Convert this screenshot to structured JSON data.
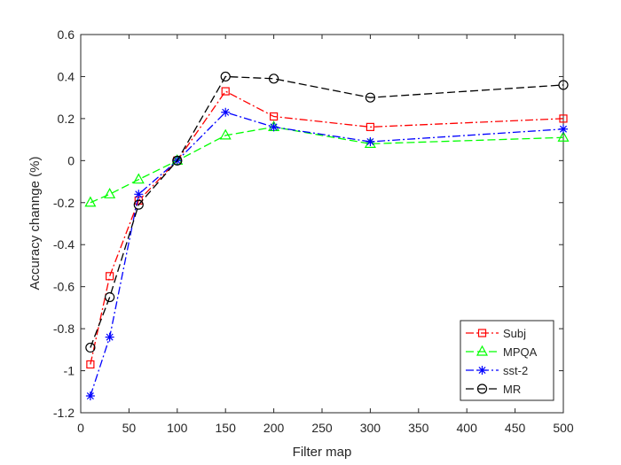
{
  "chart_data": {
    "type": "line",
    "title": "",
    "xlabel": "Filter map",
    "ylabel": "Accuracy channge (%)",
    "xlim": [
      0,
      500
    ],
    "ylim": [
      -1.2,
      0.6
    ],
    "xticks": [
      0,
      50,
      100,
      150,
      200,
      250,
      300,
      350,
      400,
      450,
      500
    ],
    "yticks": [
      -1.2,
      -1,
      -0.8,
      -0.6,
      -0.4,
      -0.2,
      0,
      0.2,
      0.4,
      0.6
    ],
    "xtick_labels": [
      "0",
      "50",
      "100",
      "150",
      "200",
      "250",
      "300",
      "350",
      "400",
      "450",
      "500"
    ],
    "ytick_labels": [
      "-1.2",
      "-1",
      "-0.8",
      "-0.6",
      "-0.4",
      "-0.2",
      "0",
      "0.2",
      "0.4",
      "0.6"
    ],
    "grid": false,
    "legend_position": "bottom-right",
    "x": [
      10,
      30,
      60,
      100,
      150,
      200,
      300,
      500
    ],
    "series": [
      {
        "name": "Subj",
        "color": "#ff0000",
        "dash": "dash-dot",
        "marker": "square",
        "values": [
          -0.97,
          -0.55,
          -0.19,
          0.0,
          0.33,
          0.21,
          0.16,
          0.2
        ]
      },
      {
        "name": "MPQA",
        "color": "#00ff00",
        "dash": "dashed",
        "marker": "triangle",
        "values": [
          -0.2,
          -0.16,
          -0.09,
          0.0,
          0.12,
          0.16,
          0.08,
          0.11
        ]
      },
      {
        "name": "sst-2",
        "color": "#0000ff",
        "dash": "dash-dot",
        "marker": "star",
        "values": [
          -1.12,
          -0.84,
          -0.16,
          0.0,
          0.23,
          0.16,
          0.09,
          0.15
        ]
      },
      {
        "name": "MR",
        "color": "#000000",
        "dash": "dashed",
        "marker": "circle",
        "values": [
          -0.89,
          -0.65,
          -0.21,
          0.0,
          0.4,
          0.39,
          0.3,
          0.36
        ]
      }
    ]
  }
}
